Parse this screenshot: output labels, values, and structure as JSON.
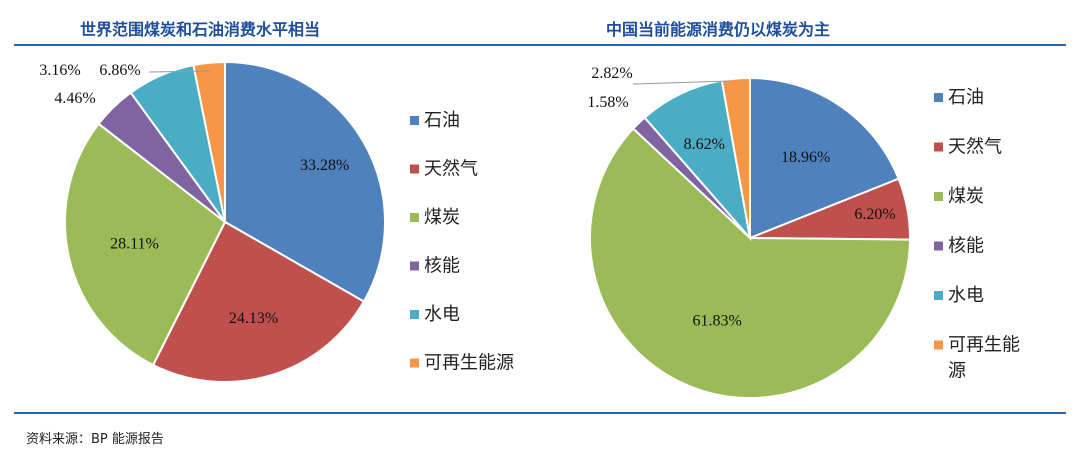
{
  "source": "资料来源：BP 能源报告",
  "colors": {
    "oil": "#4f81bd",
    "gas": "#c0504d",
    "coal": "#9bbb59",
    "nuclear": "#8064a2",
    "hydro": "#4bacc6",
    "renewable": "#f79646",
    "title": "#1f4e9c",
    "rule": "#2a63b0"
  },
  "chart_data": [
    {
      "type": "pie",
      "title": "世界范围煤炭和石油消费水平相当",
      "legend_position": "right",
      "start": "12 o'clock, clockwise",
      "categories": [
        "石油",
        "天然气",
        "煤炭",
        "核能",
        "水电",
        "可再生能源"
      ],
      "values": [
        33.28,
        24.13,
        28.11,
        4.46,
        6.86,
        3.16
      ],
      "labels": [
        "33.28%",
        "24.13%",
        "28.11%",
        "4.46%",
        "6.86%",
        "3.16%"
      ]
    },
    {
      "type": "pie",
      "title": "中国当前能源消费仍以煤炭为主",
      "legend_position": "right",
      "start": "12 o'clock, clockwise",
      "categories": [
        "石油",
        "天然气",
        "煤炭",
        "核能",
        "水电",
        "可再生能源"
      ],
      "values": [
        18.96,
        6.2,
        61.83,
        1.58,
        8.62,
        2.82
      ],
      "labels": [
        "18.96%",
        "6.20%",
        "61.83%",
        "1.58%",
        "8.62%",
        "2.82%"
      ]
    }
  ]
}
